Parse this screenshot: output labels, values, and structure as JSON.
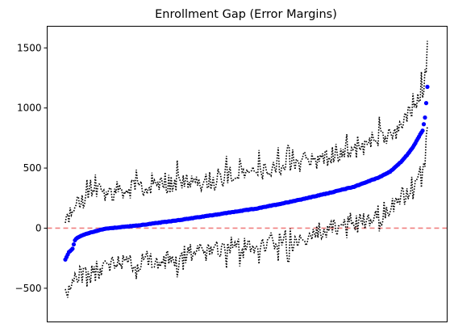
{
  "chart_data": {
    "type": "scatter",
    "title": "Enrollment Gap (Error Margins)",
    "xlabel": "",
    "ylabel": "",
    "ylim": [
      -780,
      1680
    ],
    "yticks": [
      -500,
      0,
      500,
      1000,
      1500
    ],
    "yticklabels": [
      "−500",
      "0",
      "500",
      "1000",
      "1500"
    ],
    "xticks_visible": false,
    "grid": false,
    "legend": "none",
    "reference_line": {
      "y": 0,
      "style": "dashed",
      "color": "#f08080"
    },
    "series": [
      {
        "role": "estimate",
        "marker": "circle",
        "color": "#0000ff"
      },
      {
        "role": "upper-bound",
        "style": "dotted",
        "color": "#000000"
      },
      {
        "role": "lower-bound",
        "style": "dotted",
        "color": "#000000"
      }
    ],
    "profile_points": [
      [
        0,
        -262
      ],
      [
        3,
        -200
      ],
      [
        6,
        -170
      ],
      [
        8,
        -100
      ],
      [
        10,
        -80
      ],
      [
        15,
        -55
      ],
      [
        20,
        -40
      ],
      [
        25,
        -25
      ],
      [
        30,
        -12
      ],
      [
        35,
        -2
      ],
      [
        45,
        8
      ],
      [
        60,
        22
      ],
      [
        80,
        48
      ],
      [
        100,
        75
      ],
      [
        120,
        105
      ],
      [
        140,
        135
      ],
      [
        160,
        165
      ],
      [
        180,
        205
      ],
      [
        200,
        248
      ],
      [
        220,
        295
      ],
      [
        240,
        345
      ],
      [
        260,
        420
      ],
      [
        270,
        470
      ],
      [
        280,
        560
      ],
      [
        285,
        620
      ],
      [
        290,
        690
      ],
      [
        295,
        780
      ],
      [
        297,
        810
      ],
      [
        299,
        920
      ],
      [
        300,
        1040
      ],
      [
        301,
        1175
      ]
    ],
    "n_points": 302,
    "margin_approx": 310
  }
}
